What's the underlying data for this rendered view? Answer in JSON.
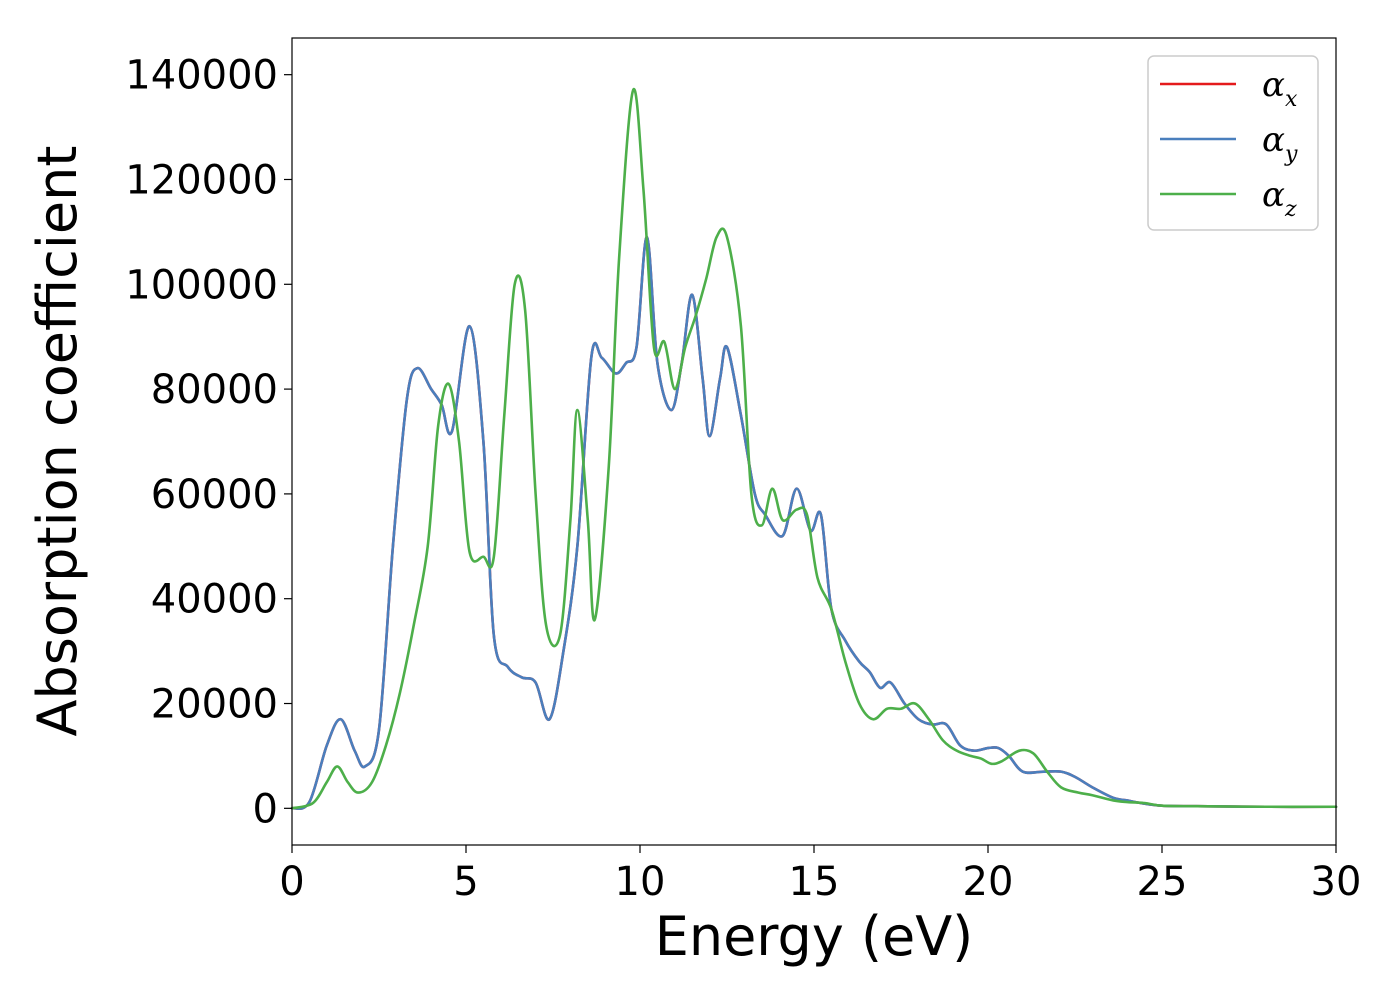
{
  "chart_data": {
    "type": "line",
    "title": "",
    "xlabel": "Energy (eV)",
    "ylabel": "Absorption coefficient",
    "xlim": [
      0,
      30
    ],
    "ylim": [
      -7000,
      147000
    ],
    "xticks": [
      0,
      5,
      10,
      15,
      20,
      25,
      30
    ],
    "yticks": [
      0,
      20000,
      40000,
      60000,
      80000,
      100000,
      120000,
      140000
    ],
    "grid": false,
    "legend": {
      "placement": "top-right"
    },
    "series": [
      {
        "name": "α_x",
        "label_main": "α",
        "label_sub": "x",
        "color": "#e41a1c",
        "x": [
          0,
          0.5,
          1.0,
          1.4,
          1.8,
          2.1,
          2.5,
          2.9,
          3.3,
          3.6,
          4.0,
          4.3,
          4.6,
          5.1,
          5.5,
          5.8,
          6.2,
          6.6,
          7.0,
          7.4,
          7.8,
          8.2,
          8.6,
          8.9,
          9.3,
          9.6,
          9.9,
          10.2,
          10.5,
          10.9,
          11.2,
          11.5,
          11.8,
          12.0,
          12.3,
          12.5,
          12.9,
          13.3,
          13.6,
          14.1,
          14.5,
          14.9,
          15.2,
          15.5,
          15.9,
          16.3,
          16.6,
          16.9,
          17.2,
          17.6,
          18.0,
          18.4,
          18.8,
          19.2,
          19.6,
          20.0,
          20.3,
          20.6,
          21.0,
          21.6,
          22.1,
          22.5,
          23.0,
          23.6,
          24.0,
          24.4,
          25.0,
          26.0,
          28.0,
          30.0
        ],
        "values": [
          0,
          1200,
          12000,
          17000,
          11000,
          8000,
          15000,
          50000,
          78000,
          84000,
          80000,
          77000,
          72000,
          92000,
          70000,
          33000,
          27000,
          25000,
          24000,
          17000,
          30000,
          50000,
          86000,
          86000,
          83000,
          85000,
          88000,
          109000,
          85000,
          76000,
          85000,
          98000,
          82000,
          71000,
          82000,
          88000,
          75000,
          60000,
          56000,
          52000,
          61000,
          53000,
          56000,
          38000,
          32000,
          28000,
          26000,
          23000,
          24000,
          20000,
          17000,
          16000,
          16000,
          12000,
          11000,
          11500,
          11500,
          10000,
          7000,
          7000,
          7000,
          6000,
          4000,
          2000,
          1500,
          1000,
          500,
          400,
          300,
          300
        ]
      },
      {
        "name": "α_y",
        "label_main": "α",
        "label_sub": "y",
        "color": "#4a7fbd",
        "x": [
          0,
          0.5,
          1.0,
          1.4,
          1.8,
          2.1,
          2.5,
          2.9,
          3.3,
          3.6,
          4.0,
          4.3,
          4.6,
          5.1,
          5.5,
          5.8,
          6.2,
          6.6,
          7.0,
          7.4,
          7.8,
          8.2,
          8.6,
          8.9,
          9.3,
          9.6,
          9.9,
          10.2,
          10.5,
          10.9,
          11.2,
          11.5,
          11.8,
          12.0,
          12.3,
          12.5,
          12.9,
          13.3,
          13.6,
          14.1,
          14.5,
          14.9,
          15.2,
          15.5,
          15.9,
          16.3,
          16.6,
          16.9,
          17.2,
          17.6,
          18.0,
          18.4,
          18.8,
          19.2,
          19.6,
          20.0,
          20.3,
          20.6,
          21.0,
          21.6,
          22.1,
          22.5,
          23.0,
          23.6,
          24.0,
          24.4,
          25.0,
          26.0,
          28.0,
          30.0
        ],
        "values": [
          0,
          1200,
          12000,
          17000,
          11000,
          8000,
          15000,
          50000,
          78000,
          84000,
          80000,
          77000,
          72000,
          92000,
          70000,
          33000,
          27000,
          25000,
          24000,
          17000,
          30000,
          50000,
          86000,
          86000,
          83000,
          85000,
          88000,
          109000,
          85000,
          76000,
          85000,
          98000,
          82000,
          71000,
          82000,
          88000,
          75000,
          60000,
          56000,
          52000,
          61000,
          53000,
          56000,
          38000,
          32000,
          28000,
          26000,
          23000,
          24000,
          20000,
          17000,
          16000,
          16000,
          12000,
          11000,
          11500,
          11500,
          10000,
          7000,
          7000,
          7000,
          6000,
          4000,
          2000,
          1500,
          1000,
          500,
          400,
          300,
          300
        ]
      },
      {
        "name": "α_z",
        "label_main": "α",
        "label_sub": "z",
        "color": "#4daf4a",
        "x": [
          0,
          0.6,
          1.0,
          1.3,
          1.6,
          1.9,
          2.3,
          2.7,
          3.1,
          3.5,
          3.9,
          4.2,
          4.5,
          4.8,
          5.1,
          5.5,
          5.8,
          6.1,
          6.4,
          6.7,
          7.0,
          7.3,
          7.7,
          8.0,
          8.2,
          8.5,
          8.7,
          9.1,
          9.4,
          9.8,
          10.1,
          10.4,
          10.7,
          11.0,
          11.3,
          11.6,
          11.9,
          12.2,
          12.5,
          12.9,
          13.2,
          13.5,
          13.8,
          14.1,
          14.5,
          14.8,
          15.1,
          15.5,
          15.9,
          16.3,
          16.7,
          17.1,
          17.5,
          17.9,
          18.3,
          18.7,
          19.1,
          19.5,
          19.8,
          20.1,
          20.4,
          20.9,
          21.3,
          21.7,
          22.1,
          22.6,
          23.0,
          23.6,
          24.0,
          24.5,
          25.0,
          26.0,
          28.0,
          30.0
        ],
        "values": [
          0,
          1000,
          5000,
          8000,
          5000,
          3000,
          5000,
          12000,
          22000,
          35000,
          50000,
          73000,
          81000,
          70000,
          49000,
          48000,
          48000,
          75000,
          100000,
          95000,
          60000,
          35000,
          33000,
          55000,
          76000,
          55000,
          36000,
          65000,
          105000,
          137000,
          118000,
          88000,
          89000,
          80000,
          88000,
          94000,
          101000,
          109000,
          109000,
          92000,
          60000,
          54000,
          61000,
          55000,
          57000,
          56000,
          44000,
          38000,
          28000,
          20000,
          17000,
          19000,
          19000,
          20000,
          17000,
          13000,
          11000,
          10000,
          9500,
          8500,
          9000,
          11000,
          10500,
          7000,
          4000,
          3000,
          2500,
          1500,
          1200,
          1000,
          500,
          400,
          300,
          300
        ]
      }
    ]
  }
}
